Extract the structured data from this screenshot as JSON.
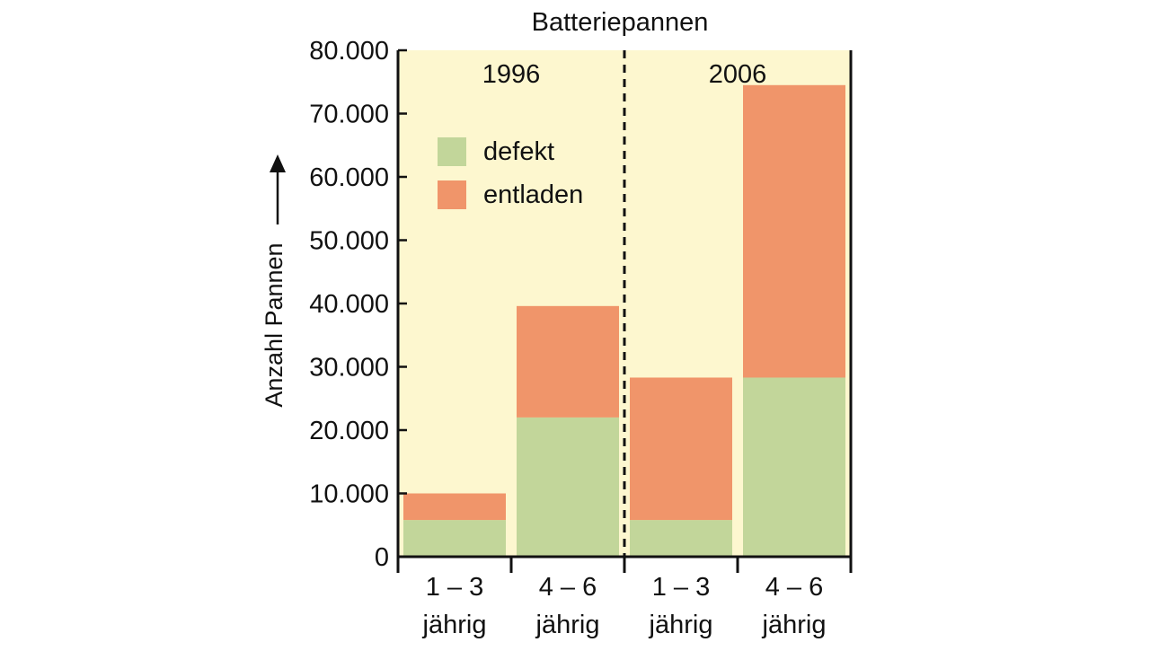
{
  "chart_data": {
    "type": "bar",
    "stacked": true,
    "title": "Batteriepannen",
    "ylabel": "Anzahl Pannen",
    "ylim": [
      0,
      80000
    ],
    "yticks": [
      0,
      10000,
      20000,
      30000,
      40000,
      50000,
      60000,
      70000,
      80000
    ],
    "ytick_labels": [
      "0",
      "10.000",
      "20.000",
      "30.000",
      "40.000",
      "50.000",
      "60.000",
      "70.000",
      "80.000"
    ],
    "grid": false,
    "legend_position": "top-left",
    "groups": [
      {
        "label": "1996",
        "categories": [
          0,
          1
        ]
      },
      {
        "label": "2006",
        "categories": [
          2,
          3
        ]
      }
    ],
    "categories": [
      {
        "line1": "1 – 3",
        "line2": "jährig"
      },
      {
        "line1": "4 – 6",
        "line2": "jährig"
      },
      {
        "line1": "1 – 3",
        "line2": "jährig"
      },
      {
        "line1": "4 – 6",
        "line2": "jährig"
      }
    ],
    "series": [
      {
        "name": "defekt",
        "color": "#c2d69a",
        "values": [
          5800,
          22000,
          5800,
          28300
        ]
      },
      {
        "name": "entladen",
        "color": "#f0956a",
        "values": [
          4200,
          17600,
          22500,
          46200
        ]
      }
    ],
    "colors": {
      "plot_background": "#fdf7cf",
      "axis": "#111111",
      "divider": "#111111"
    }
  }
}
